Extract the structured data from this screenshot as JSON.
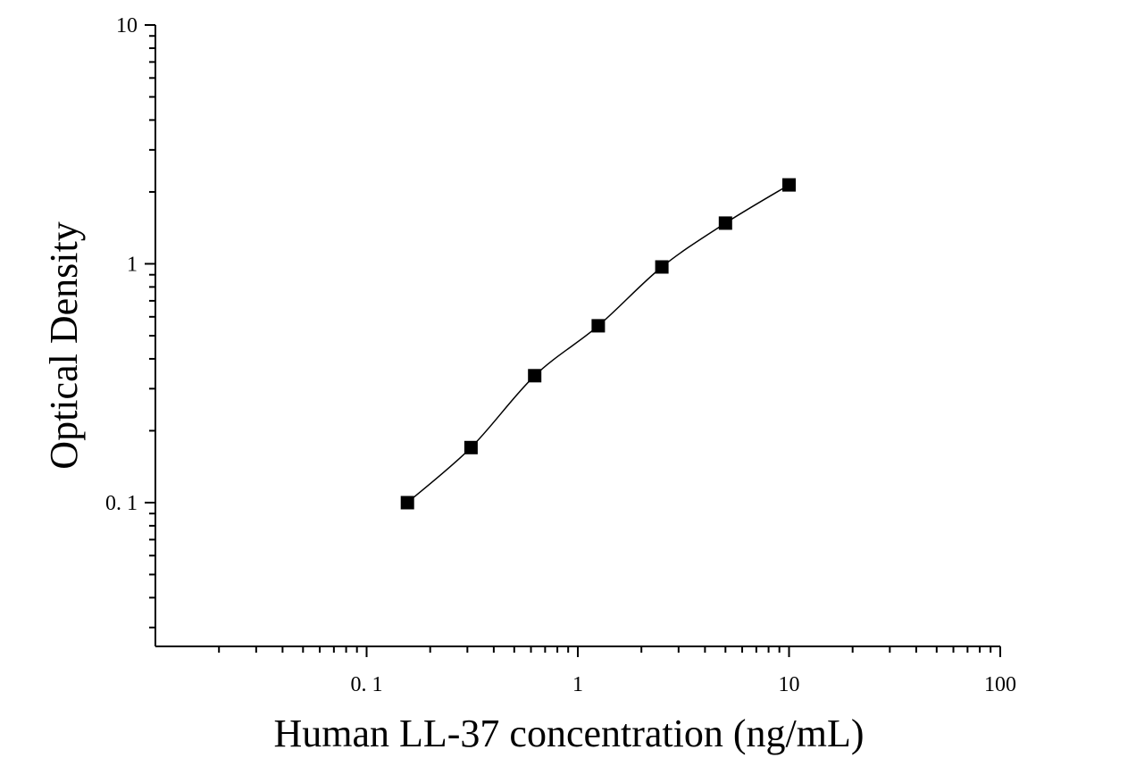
{
  "chart_data": {
    "type": "scatter",
    "title": "",
    "xlabel": "Human LL-37 concentration (ng/mL)",
    "ylabel": "Optical Density",
    "x_scale": "log",
    "y_scale": "log",
    "xlim": [
      0.01,
      100
    ],
    "ylim": [
      0.025,
      10
    ],
    "x_ticks": [
      {
        "value": 0.1,
        "label": "0. 1"
      },
      {
        "value": 1,
        "label": "1"
      },
      {
        "value": 10,
        "label": "10"
      },
      {
        "value": 100,
        "label": "100"
      }
    ],
    "y_ticks": [
      {
        "value": 0.1,
        "label": "0. 1"
      },
      {
        "value": 1,
        "label": "1"
      },
      {
        "value": 10,
        "label": "10"
      }
    ],
    "grid": false,
    "legend": "none",
    "series": [
      {
        "x": [
          0.156,
          0.312,
          0.625,
          1.25,
          2.5,
          5,
          10
        ],
        "y": [
          0.1,
          0.17,
          0.34,
          0.55,
          0.97,
          1.48,
          2.14
        ],
        "marker": "square",
        "fit_curve": true,
        "color": "#000000"
      }
    ]
  }
}
